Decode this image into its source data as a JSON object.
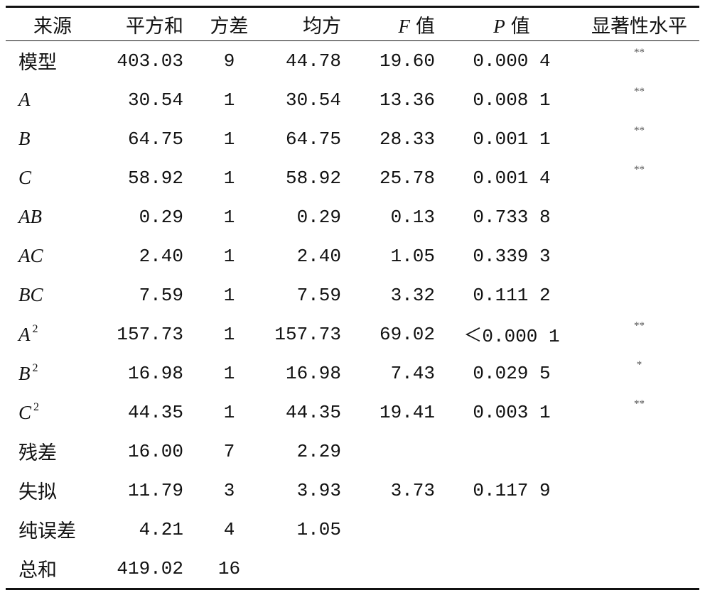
{
  "table": {
    "header": [
      "来源",
      "平方和",
      "方差",
      "均方",
      {
        "var": "F",
        "text": "值"
      },
      {
        "var": "P",
        "text": "值"
      },
      "显著性水平"
    ],
    "rows": [
      [
        "模型",
        "403.03",
        "9",
        "44.78",
        "19.60",
        "0.000 4",
        "**"
      ],
      [
        {
          "base": "A"
        },
        "30.54",
        "1",
        "30.54",
        "13.36",
        "0.008 1",
        "**"
      ],
      [
        {
          "base": "B"
        },
        "64.75",
        "1",
        "64.75",
        "28.33",
        "0.001 1",
        "**"
      ],
      [
        {
          "base": "C"
        },
        "58.92",
        "1",
        "58.92",
        "25.78",
        "0.001 4",
        "**"
      ],
      [
        {
          "base": "AB"
        },
        "0.29",
        "1",
        "0.29",
        "0.13",
        "0.733 8",
        null
      ],
      [
        {
          "base": "AC"
        },
        "2.40",
        "1",
        "2.40",
        "1.05",
        "0.339 3",
        null
      ],
      [
        {
          "base": "BC"
        },
        "7.59",
        "1",
        "7.59",
        "3.32",
        "0.111 2",
        null
      ],
      [
        {
          "base": "A",
          "sup": "2"
        },
        "157.73",
        "1",
        "157.73",
        "69.02",
        "＜0.000 1",
        "**"
      ],
      [
        {
          "base": "B",
          "sup": "2"
        },
        "16.98",
        "1",
        "16.98",
        "7.43",
        "0.029 5",
        "*"
      ],
      [
        {
          "base": "C",
          "sup": "2"
        },
        "44.35",
        "1",
        "44.35",
        "19.41",
        "0.003 1",
        "**"
      ],
      [
        "残差",
        "16.00",
        "7",
        "2.29",
        null,
        null,
        null
      ],
      [
        "失拟",
        "11.79",
        "3",
        "3.93",
        "3.73",
        "0.117 9",
        null
      ],
      [
        "纯误差",
        "4.21",
        "4",
        "1.05",
        null,
        null,
        null
      ],
      [
        "总和",
        "419.02",
        "16",
        null,
        null,
        null,
        null
      ]
    ]
  }
}
